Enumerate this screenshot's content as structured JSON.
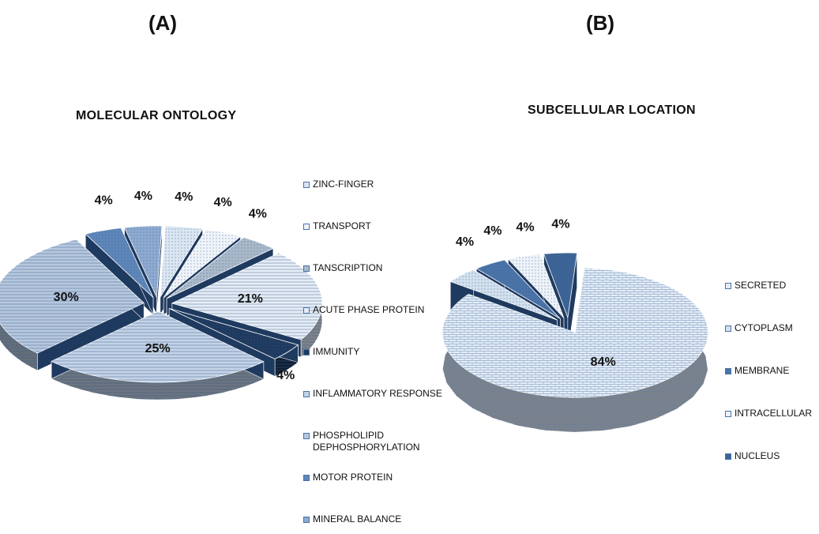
{
  "panels": {
    "a": {
      "letter": "(A)",
      "title": "MOLECULAR ONTOLOGY"
    },
    "b": {
      "letter": "(B)",
      "title": "SUBCELLULAR LOCATION"
    }
  },
  "chart_data": [
    {
      "type": "pie",
      "title": "MOLECULAR ONTOLOGY",
      "three_d": true,
      "exploded": true,
      "legend_position": "right",
      "slices": [
        {
          "name": "ZINC-FINGER",
          "value": 4,
          "label": "4%",
          "color": "#dbe6f2"
        },
        {
          "name": "TRANSPORT",
          "value": 4,
          "label": "4%",
          "color": "#f0f4f9"
        },
        {
          "name": "TANSCRIPTION",
          "value": 4,
          "label": "4%",
          "color": "#aab9c9"
        },
        {
          "name": "ACUTE PHASE PROTEIN",
          "value": 21,
          "label": "21%",
          "color": "#e6edf5"
        },
        {
          "name": "IMMUNITY",
          "value": 4,
          "label": "4%",
          "color": "#1f3a5f"
        },
        {
          "name": "INFLAMMATORY RESPONSE",
          "value": 25,
          "label": "25%",
          "color": "#c4d3e6"
        },
        {
          "name": "PHOSPHOLIPID\nDEPHOSPHORYLATION",
          "value": 30,
          "label": "30%",
          "color": "#b7c8de"
        },
        {
          "name": "MOTOR PROTEIN",
          "value": 4,
          "label": "4%",
          "color": "#5f86b8"
        },
        {
          "name": "MINERAL BALANCE",
          "value": 4,
          "label": "4%",
          "color": "#8eaad0"
        }
      ]
    },
    {
      "type": "pie",
      "title": "SUBCELLULAR LOCATION",
      "three_d": true,
      "exploded": true,
      "legend_position": "right",
      "slices": [
        {
          "name": "SECRETED",
          "value": 84,
          "label": "84%",
          "color": "#e4edf7"
        },
        {
          "name": "CYTOPLASM",
          "value": 4,
          "label": "4%",
          "color": "#d3e0ee"
        },
        {
          "name": "MEMBRANE",
          "value": 4,
          "label": "4%",
          "color": "#4a73a8"
        },
        {
          "name": "INTRACELLULAR",
          "value": 4,
          "label": "4%",
          "color": "#eef3f9"
        },
        {
          "name": "NUCLEUS",
          "value": 4,
          "label": "4%",
          "color": "#3d6496"
        }
      ]
    }
  ]
}
